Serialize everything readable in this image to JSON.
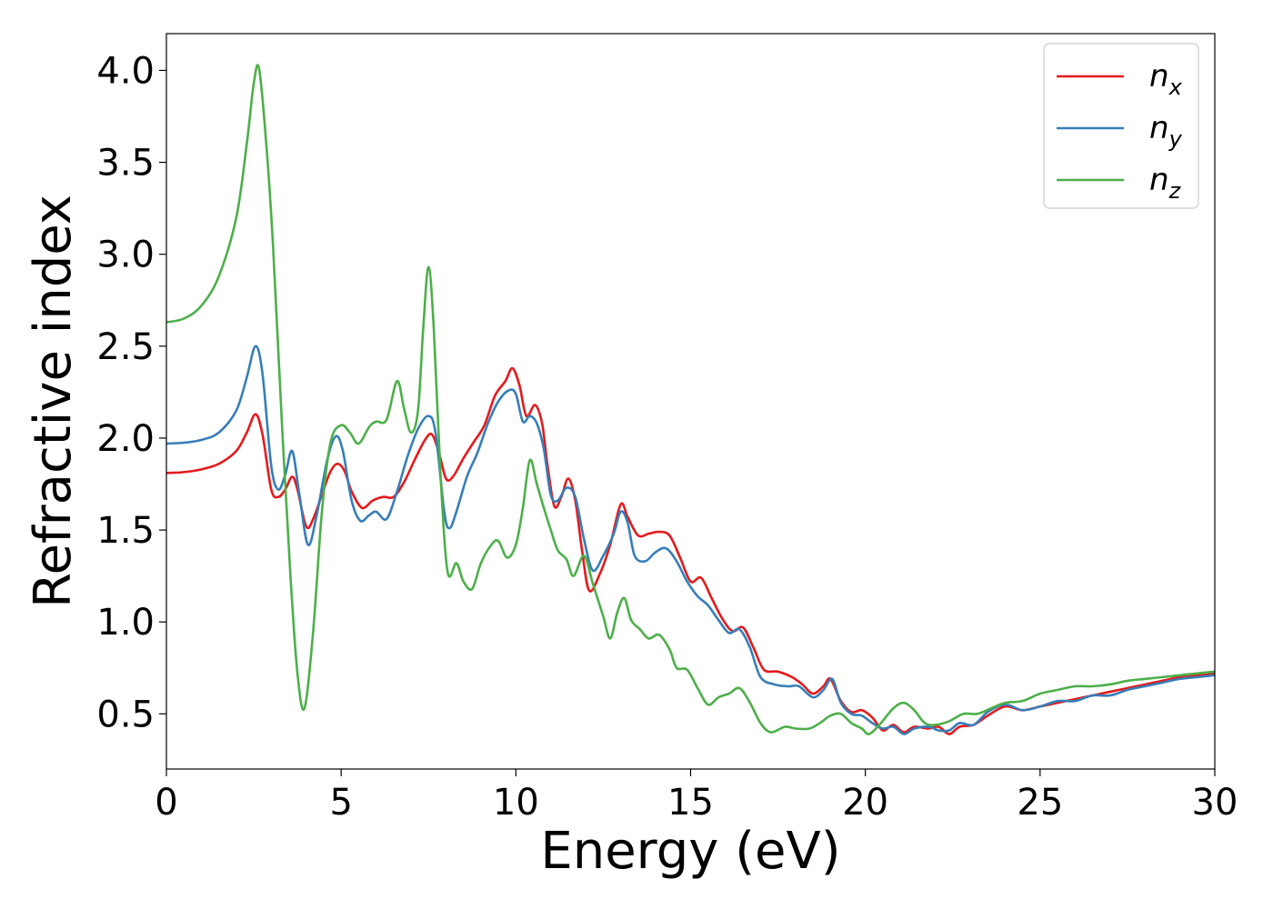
{
  "chart_data": {
    "type": "line",
    "title": "",
    "xlabel": "Energy (eV)",
    "ylabel": "Refractive index",
    "xlim": [
      0,
      30
    ],
    "ylim": [
      0.2,
      4.2
    ],
    "xticks": [
      0,
      5,
      10,
      15,
      20,
      25,
      30
    ],
    "xtick_labels": [
      "0",
      "5",
      "10",
      "15",
      "20",
      "25",
      "30"
    ],
    "yticks": [
      0.5,
      1.0,
      1.5,
      2.0,
      2.5,
      3.0,
      3.5,
      4.0
    ],
    "ytick_labels": [
      "0.5",
      "1.0",
      "1.5",
      "2.0",
      "2.5",
      "3.0",
      "3.5",
      "4.0"
    ],
    "grid": false,
    "legend_position": "top-right",
    "series": [
      {
        "name": "n",
        "sub": "x",
        "color": "#e41a1c",
        "points": [
          [
            0,
            1.81
          ],
          [
            0.5,
            1.815
          ],
          [
            1.0,
            1.83
          ],
          [
            1.5,
            1.86
          ],
          [
            2.0,
            1.93
          ],
          [
            2.3,
            2.03
          ],
          [
            2.55,
            2.13
          ],
          [
            2.75,
            2.02
          ],
          [
            3.0,
            1.72
          ],
          [
            3.2,
            1.68
          ],
          [
            3.4,
            1.72
          ],
          [
            3.6,
            1.79
          ],
          [
            3.75,
            1.72
          ],
          [
            4.0,
            1.52
          ],
          [
            4.2,
            1.56
          ],
          [
            4.5,
            1.72
          ],
          [
            4.7,
            1.82
          ],
          [
            4.9,
            1.86
          ],
          [
            5.1,
            1.82
          ],
          [
            5.3,
            1.71
          ],
          [
            5.6,
            1.62
          ],
          [
            5.9,
            1.66
          ],
          [
            6.2,
            1.68
          ],
          [
            6.5,
            1.68
          ],
          [
            6.8,
            1.76
          ],
          [
            7.1,
            1.88
          ],
          [
            7.4,
            1.99
          ],
          [
            7.6,
            2.02
          ],
          [
            7.8,
            1.92
          ],
          [
            8.0,
            1.78
          ],
          [
            8.2,
            1.79
          ],
          [
            8.5,
            1.89
          ],
          [
            8.8,
            1.98
          ],
          [
            9.1,
            2.07
          ],
          [
            9.4,
            2.23
          ],
          [
            9.7,
            2.31
          ],
          [
            9.9,
            2.38
          ],
          [
            10.1,
            2.29
          ],
          [
            10.3,
            2.12
          ],
          [
            10.55,
            2.18
          ],
          [
            10.75,
            2.08
          ],
          [
            10.9,
            1.86
          ],
          [
            11.1,
            1.63
          ],
          [
            11.3,
            1.68
          ],
          [
            11.5,
            1.78
          ],
          [
            11.7,
            1.66
          ],
          [
            11.9,
            1.38
          ],
          [
            12.1,
            1.17
          ],
          [
            12.4,
            1.26
          ],
          [
            12.7,
            1.42
          ],
          [
            13.0,
            1.64
          ],
          [
            13.2,
            1.57
          ],
          [
            13.5,
            1.47
          ],
          [
            13.8,
            1.48
          ],
          [
            14.1,
            1.49
          ],
          [
            14.4,
            1.47
          ],
          [
            14.7,
            1.35
          ],
          [
            15.0,
            1.22
          ],
          [
            15.3,
            1.24
          ],
          [
            15.6,
            1.13
          ],
          [
            15.9,
            1.02
          ],
          [
            16.2,
            0.95
          ],
          [
            16.5,
            0.97
          ],
          [
            16.8,
            0.86
          ],
          [
            17.1,
            0.74
          ],
          [
            17.5,
            0.73
          ],
          [
            17.9,
            0.7
          ],
          [
            18.2,
            0.66
          ],
          [
            18.5,
            0.61
          ],
          [
            18.8,
            0.65
          ],
          [
            19.0,
            0.69
          ],
          [
            19.3,
            0.57
          ],
          [
            19.6,
            0.51
          ],
          [
            19.9,
            0.52
          ],
          [
            20.2,
            0.48
          ],
          [
            20.5,
            0.41
          ],
          [
            20.8,
            0.44
          ],
          [
            21.1,
            0.4
          ],
          [
            21.4,
            0.43
          ],
          [
            21.8,
            0.42
          ],
          [
            22.1,
            0.43
          ],
          [
            22.4,
            0.39
          ],
          [
            22.7,
            0.43
          ],
          [
            23.1,
            0.44
          ],
          [
            23.5,
            0.49
          ],
          [
            24.0,
            0.54
          ],
          [
            24.5,
            0.52
          ],
          [
            25.0,
            0.54
          ],
          [
            25.5,
            0.56
          ],
          [
            26.0,
            0.58
          ],
          [
            26.5,
            0.6
          ],
          [
            27.0,
            0.62
          ],
          [
            27.5,
            0.64
          ],
          [
            28.0,
            0.66
          ],
          [
            28.5,
            0.68
          ],
          [
            29.0,
            0.7
          ],
          [
            29.5,
            0.71
          ],
          [
            30.0,
            0.72
          ]
        ]
      },
      {
        "name": "n",
        "sub": "y",
        "color": "#377eb8",
        "points": [
          [
            0,
            1.97
          ],
          [
            0.5,
            1.975
          ],
          [
            1.0,
            1.99
          ],
          [
            1.5,
            2.03
          ],
          [
            2.0,
            2.15
          ],
          [
            2.3,
            2.33
          ],
          [
            2.55,
            2.5
          ],
          [
            2.75,
            2.35
          ],
          [
            3.0,
            1.85
          ],
          [
            3.2,
            1.72
          ],
          [
            3.4,
            1.8
          ],
          [
            3.6,
            1.93
          ],
          [
            3.8,
            1.7
          ],
          [
            4.05,
            1.42
          ],
          [
            4.3,
            1.58
          ],
          [
            4.6,
            1.88
          ],
          [
            4.85,
            2.01
          ],
          [
            5.05,
            1.93
          ],
          [
            5.3,
            1.66
          ],
          [
            5.55,
            1.55
          ],
          [
            5.8,
            1.58
          ],
          [
            6.0,
            1.6
          ],
          [
            6.3,
            1.56
          ],
          [
            6.6,
            1.71
          ],
          [
            6.9,
            1.9
          ],
          [
            7.2,
            2.05
          ],
          [
            7.5,
            2.12
          ],
          [
            7.7,
            2.03
          ],
          [
            7.95,
            1.6
          ],
          [
            8.1,
            1.51
          ],
          [
            8.3,
            1.6
          ],
          [
            8.6,
            1.79
          ],
          [
            8.9,
            1.92
          ],
          [
            9.2,
            2.08
          ],
          [
            9.5,
            2.2
          ],
          [
            9.8,
            2.26
          ],
          [
            10.0,
            2.24
          ],
          [
            10.2,
            2.09
          ],
          [
            10.4,
            2.12
          ],
          [
            10.6,
            2.08
          ],
          [
            10.8,
            1.94
          ],
          [
            11.0,
            1.69
          ],
          [
            11.2,
            1.66
          ],
          [
            11.45,
            1.73
          ],
          [
            11.7,
            1.68
          ],
          [
            11.95,
            1.45
          ],
          [
            12.2,
            1.28
          ],
          [
            12.5,
            1.36
          ],
          [
            12.8,
            1.48
          ],
          [
            13.0,
            1.6
          ],
          [
            13.2,
            1.54
          ],
          [
            13.4,
            1.36
          ],
          [
            13.7,
            1.33
          ],
          [
            14.0,
            1.38
          ],
          [
            14.3,
            1.4
          ],
          [
            14.6,
            1.33
          ],
          [
            14.9,
            1.22
          ],
          [
            15.2,
            1.14
          ],
          [
            15.5,
            1.09
          ],
          [
            15.8,
            1.01
          ],
          [
            16.1,
            0.94
          ],
          [
            16.4,
            0.96
          ],
          [
            16.7,
            0.86
          ],
          [
            17.0,
            0.7
          ],
          [
            17.4,
            0.66
          ],
          [
            17.8,
            0.65
          ],
          [
            18.1,
            0.65
          ],
          [
            18.5,
            0.59
          ],
          [
            18.8,
            0.63
          ],
          [
            19.05,
            0.69
          ],
          [
            19.3,
            0.56
          ],
          [
            19.6,
            0.5
          ],
          [
            19.9,
            0.49
          ],
          [
            20.2,
            0.45
          ],
          [
            20.5,
            0.42
          ],
          [
            20.8,
            0.43
          ],
          [
            21.1,
            0.39
          ],
          [
            21.4,
            0.42
          ],
          [
            21.8,
            0.43
          ],
          [
            22.1,
            0.41
          ],
          [
            22.4,
            0.41
          ],
          [
            22.7,
            0.45
          ],
          [
            23.1,
            0.44
          ],
          [
            23.5,
            0.51
          ],
          [
            24.0,
            0.55
          ],
          [
            24.5,
            0.52
          ],
          [
            25.0,
            0.54
          ],
          [
            25.5,
            0.57
          ],
          [
            26.0,
            0.57
          ],
          [
            26.5,
            0.6
          ],
          [
            27.0,
            0.6
          ],
          [
            27.5,
            0.63
          ],
          [
            28.0,
            0.65
          ],
          [
            28.5,
            0.67
          ],
          [
            29.0,
            0.69
          ],
          [
            29.5,
            0.7
          ],
          [
            30.0,
            0.71
          ]
        ]
      },
      {
        "name": "n",
        "sub": "z",
        "color": "#4daf4a",
        "points": [
          [
            0,
            2.63
          ],
          [
            0.5,
            2.65
          ],
          [
            1.0,
            2.72
          ],
          [
            1.5,
            2.88
          ],
          [
            2.0,
            3.2
          ],
          [
            2.3,
            3.6
          ],
          [
            2.5,
            3.93
          ],
          [
            2.65,
            4.01
          ],
          [
            2.85,
            3.62
          ],
          [
            3.05,
            3.05
          ],
          [
            3.3,
            2.1
          ],
          [
            3.55,
            1.25
          ],
          [
            3.75,
            0.72
          ],
          [
            3.95,
            0.53
          ],
          [
            4.2,
            0.95
          ],
          [
            4.45,
            1.6
          ],
          [
            4.7,
            1.98
          ],
          [
            5.0,
            2.07
          ],
          [
            5.25,
            2.03
          ],
          [
            5.5,
            1.97
          ],
          [
            5.8,
            2.06
          ],
          [
            6.0,
            2.09
          ],
          [
            6.3,
            2.1
          ],
          [
            6.6,
            2.31
          ],
          [
            6.8,
            2.16
          ],
          [
            7.0,
            2.03
          ],
          [
            7.2,
            2.15
          ],
          [
            7.35,
            2.6
          ],
          [
            7.5,
            2.93
          ],
          [
            7.65,
            2.6
          ],
          [
            7.85,
            1.78
          ],
          [
            8.05,
            1.27
          ],
          [
            8.3,
            1.32
          ],
          [
            8.5,
            1.22
          ],
          [
            8.75,
            1.18
          ],
          [
            9.0,
            1.32
          ],
          [
            9.3,
            1.42
          ],
          [
            9.5,
            1.44
          ],
          [
            9.75,
            1.35
          ],
          [
            10.0,
            1.42
          ],
          [
            10.2,
            1.62
          ],
          [
            10.4,
            1.88
          ],
          [
            10.6,
            1.75
          ],
          [
            10.8,
            1.62
          ],
          [
            11.0,
            1.5
          ],
          [
            11.2,
            1.39
          ],
          [
            11.45,
            1.34
          ],
          [
            11.65,
            1.25
          ],
          [
            11.95,
            1.36
          ],
          [
            12.2,
            1.21
          ],
          [
            12.5,
            1.03
          ],
          [
            12.7,
            0.91
          ],
          [
            12.9,
            1.05
          ],
          [
            13.1,
            1.13
          ],
          [
            13.3,
            1.01
          ],
          [
            13.55,
            0.96
          ],
          [
            13.8,
            0.91
          ],
          [
            14.1,
            0.93
          ],
          [
            14.4,
            0.85
          ],
          [
            14.6,
            0.75
          ],
          [
            14.9,
            0.74
          ],
          [
            15.2,
            0.64
          ],
          [
            15.5,
            0.55
          ],
          [
            15.8,
            0.59
          ],
          [
            16.1,
            0.61
          ],
          [
            16.4,
            0.64
          ],
          [
            16.7,
            0.56
          ],
          [
            17.0,
            0.45
          ],
          [
            17.3,
            0.4
          ],
          [
            17.7,
            0.43
          ],
          [
            18.0,
            0.42
          ],
          [
            18.4,
            0.42
          ],
          [
            18.7,
            0.45
          ],
          [
            19.0,
            0.49
          ],
          [
            19.3,
            0.5
          ],
          [
            19.6,
            0.45
          ],
          [
            19.9,
            0.42
          ],
          [
            20.1,
            0.39
          ],
          [
            20.4,
            0.44
          ],
          [
            20.8,
            0.53
          ],
          [
            21.1,
            0.56
          ],
          [
            21.4,
            0.52
          ],
          [
            21.7,
            0.45
          ],
          [
            22.0,
            0.44
          ],
          [
            22.4,
            0.46
          ],
          [
            22.8,
            0.5
          ],
          [
            23.2,
            0.5
          ],
          [
            23.6,
            0.53
          ],
          [
            24.0,
            0.56
          ],
          [
            24.5,
            0.57
          ],
          [
            25.0,
            0.61
          ],
          [
            25.5,
            0.63
          ],
          [
            26.0,
            0.65
          ],
          [
            26.5,
            0.65
          ],
          [
            27.0,
            0.66
          ],
          [
            27.5,
            0.68
          ],
          [
            28.0,
            0.69
          ],
          [
            28.5,
            0.7
          ],
          [
            29.0,
            0.71
          ],
          [
            29.5,
            0.72
          ],
          [
            30.0,
            0.73
          ]
        ]
      }
    ]
  }
}
